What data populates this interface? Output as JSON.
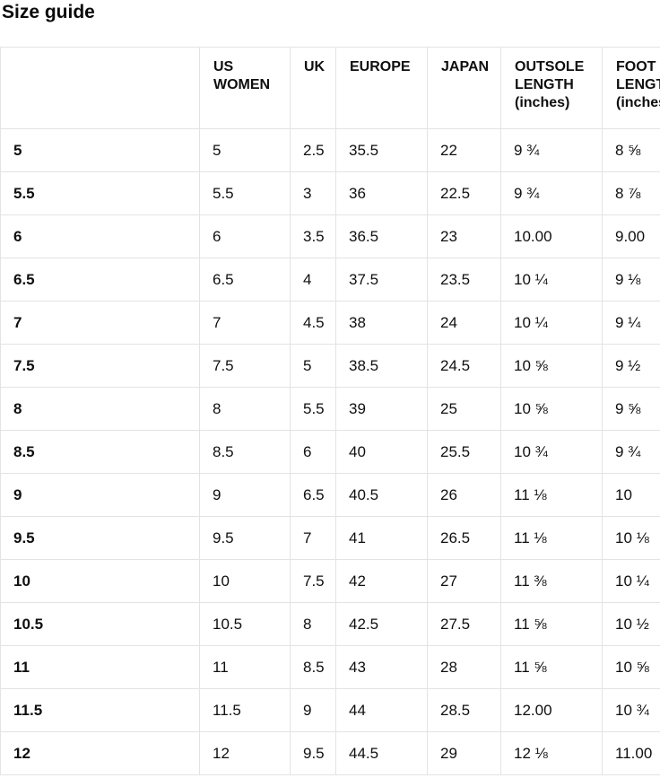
{
  "page": {
    "title": "Size guide"
  },
  "colors": {
    "text": "#0f0f0f",
    "border": "#e3e3e3",
    "background": "#ffffff"
  },
  "table": {
    "columns": [
      "",
      "US WOMEN",
      "UK",
      "EUROPE",
      "JAPAN",
      "OUTSOLE LENGTH (inches)",
      "FOOT LENGTH (inches)"
    ],
    "rows": [
      [
        "5",
        "5",
        "2.5",
        "35.5",
        "22",
        "9 ¾",
        "8 ⅝"
      ],
      [
        "5.5",
        "5.5",
        "3",
        "36",
        "22.5",
        "9 ¾",
        "8 ⅞"
      ],
      [
        "6",
        "6",
        "3.5",
        "36.5",
        "23",
        "10.00",
        "9.00"
      ],
      [
        "6.5",
        "6.5",
        "4",
        "37.5",
        "23.5",
        "10 ¼",
        "9 ⅛"
      ],
      [
        "7",
        "7",
        "4.5",
        "38",
        "24",
        "10 ¼",
        "9 ¼"
      ],
      [
        "7.5",
        "7.5",
        "5",
        "38.5",
        "24.5",
        "10 ⅝",
        "9 ½"
      ],
      [
        "8",
        "8",
        "5.5",
        "39",
        "25",
        "10 ⅝",
        "9 ⅝"
      ],
      [
        "8.5",
        "8.5",
        "6",
        "40",
        "25.5",
        "10 ¾",
        "9 ¾"
      ],
      [
        "9",
        "9",
        "6.5",
        "40.5",
        "26",
        "11 ⅛",
        "10"
      ],
      [
        "9.5",
        "9.5",
        "7",
        "41",
        "26.5",
        "11 ⅛",
        "10 ⅛"
      ],
      [
        "10",
        "10",
        "7.5",
        "42",
        "27",
        "11 ⅜",
        "10 ¼"
      ],
      [
        "10.5",
        "10.5",
        "8",
        "42.5",
        "27.5",
        "11 ⅝",
        "10 ½"
      ],
      [
        "11",
        "11",
        "8.5",
        "43",
        "28",
        "11 ⅝",
        "10 ⅝"
      ],
      [
        "11.5",
        "11.5",
        "9",
        "44",
        "28.5",
        "12.00",
        "10 ¾"
      ],
      [
        "12",
        "12",
        "9.5",
        "44.5",
        "29",
        "12 ⅛",
        "11.00"
      ]
    ]
  }
}
